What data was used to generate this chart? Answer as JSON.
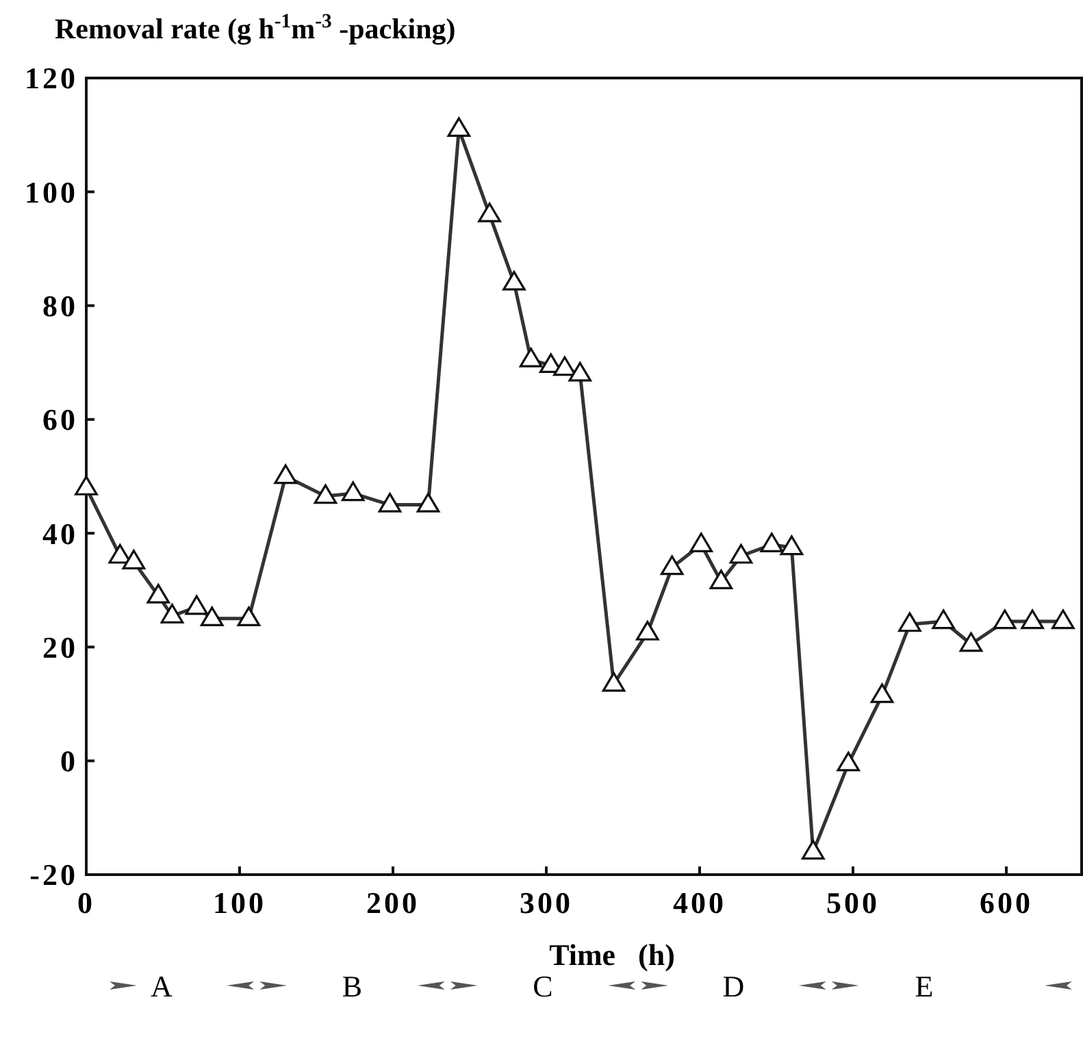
{
  "chart_data": {
    "type": "line",
    "xlabel": "Time   (h)",
    "ylabel": "Removal rate   (g h$^{-1}$m$^{-3}$ -packing)",
    "xlim": [
      0,
      650
    ],
    "xticks": [
      0,
      100,
      200,
      300,
      400,
      500,
      600
    ],
    "ylim": [
      -20,
      120
    ],
    "yticks": [
      -20,
      0,
      20,
      40,
      60,
      80,
      100,
      120
    ],
    "marker": "triangle",
    "line_style": "solid",
    "grid": false,
    "series": [
      {
        "color": "#333333",
        "x": [
          0,
          22,
          31,
          47,
          56,
          72,
          82,
          106,
          130,
          156,
          174,
          198,
          223,
          243,
          263,
          279,
          290,
          303,
          312,
          322,
          344,
          366,
          382,
          401,
          414,
          427,
          447,
          460,
          474,
          497,
          519,
          537,
          559,
          577,
          599,
          617,
          637
        ],
        "values": [
          48,
          36,
          35,
          29,
          25.5,
          27,
          25,
          25,
          50,
          46.5,
          47,
          45,
          45,
          111,
          96,
          84,
          70.5,
          69.5,
          69,
          68,
          13.5,
          22.5,
          34,
          38,
          31.5,
          36,
          38,
          37.5,
          -16,
          -0.5,
          11.5,
          24,
          24.5,
          20.5,
          24.5,
          24.5,
          24.5
        ]
      }
    ],
    "annotations": [
      "A",
      "B",
      "C",
      "D",
      "E"
    ]
  }
}
